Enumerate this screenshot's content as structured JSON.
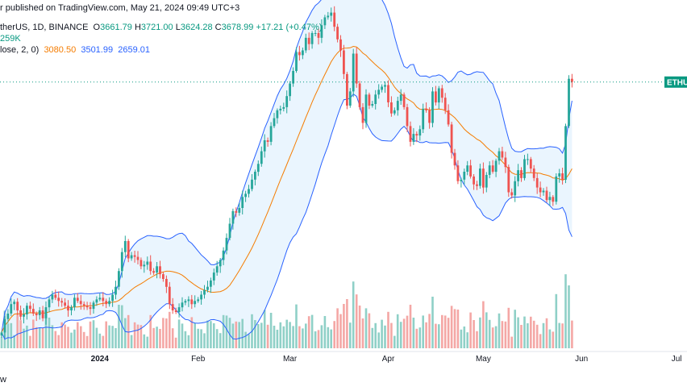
{
  "header": {
    "published": "r published on TradingView.com, May 21, 2024 09:49 UTC+3"
  },
  "legend": {
    "symbol": "therUS, 1D, BINANCE",
    "o_label": "O",
    "o_value": "3661.79",
    "h_label": "H",
    "h_value": "3721.00",
    "l_label": "L",
    "l_value": "3624.28",
    "c_label": "C",
    "c_value": "3678.99",
    "change": "+17.21 (+0.47%)",
    "volume": "259K",
    "bb_label": "lose, 2, 0)",
    "bb_basis": "3080.50",
    "bb_upper": "3501.99",
    "bb_lower": "2659.01"
  },
  "price_tag": "ETHU",
  "footer": "w",
  "colors": {
    "up": "#26a69a",
    "down": "#ef5350",
    "vol_up": "#8fd0c7",
    "vol_down": "#f4a7a5",
    "basis": "#f57c00",
    "band": "#2962ff",
    "band_fill": "#e3f2fd",
    "tag": "#089981"
  },
  "chart_data": {
    "type": "candlestick",
    "x_axis_labels": [
      "2024",
      "Feb",
      "Mar",
      "Apr",
      "May",
      "Jun",
      "Jul"
    ],
    "x_axis_label_dates": [
      "2024-01-01",
      "2024-02-01",
      "2024-03-01",
      "2024-04-01",
      "2024-05-01",
      "2024-06-01",
      "2024-07-01"
    ],
    "date_start": "2023-12-01",
    "date_end": "2024-05-20",
    "ylim": [
      2000,
      4200
    ],
    "last_close": 3678.99,
    "close": [
      2090,
      2175,
      2210,
      2270,
      2285,
      2230,
      2190,
      2205,
      2260,
      2240,
      2210,
      2200,
      2230,
      2180,
      2250,
      2300,
      2330,
      2310,
      2290,
      2280,
      2260,
      2230,
      2250,
      2310,
      2290,
      2270,
      2260,
      2250,
      2240,
      2280,
      2300,
      2310,
      2290,
      2270,
      2290,
      2330,
      2380,
      2480,
      2600,
      2670,
      2560,
      2580,
      2570,
      2550,
      2510,
      2520,
      2540,
      2480,
      2470,
      2510,
      2460,
      2430,
      2380,
      2270,
      2230,
      2220,
      2250,
      2280,
      2290,
      2300,
      2270,
      2290,
      2300,
      2330,
      2360,
      2380,
      2420,
      2470,
      2510,
      2550,
      2610,
      2690,
      2780,
      2860,
      2850,
      2880,
      2950,
      2970,
      3000,
      3060,
      3110,
      3160,
      3240,
      3310,
      3300,
      3400,
      3450,
      3500,
      3510,
      3520,
      3590,
      3670,
      3750,
      3870,
      3850,
      3880,
      3960,
      3920,
      3990,
      3990,
      3960,
      4040,
      4090,
      4100,
      4120,
      4030,
      3950,
      3880,
      3730,
      3530,
      3620,
      3860,
      3670,
      3520,
      3420,
      3600,
      3530,
      3540,
      3600,
      3630,
      3650,
      3660,
      3550,
      3480,
      3500,
      3560,
      3600,
      3520,
      3400,
      3300,
      3350,
      3340,
      3380,
      3510,
      3500,
      3420,
      3620,
      3550,
      3640,
      3580,
      3500,
      3410,
      3230,
      3150,
      3050,
      3060,
      3110,
      3150,
      3080,
      3030,
      3020,
      3130,
      3010,
      3090,
      3150,
      3110,
      3180,
      3240,
      3200,
      3140,
      2980,
      2960,
      3050,
      3120,
      3070,
      3190,
      3190,
      3130,
      3070,
      3010,
      2980,
      2990,
      2930,
      2950,
      2920,
      3080,
      3100,
      3060,
      3400,
      3700,
      3680
    ]
  }
}
